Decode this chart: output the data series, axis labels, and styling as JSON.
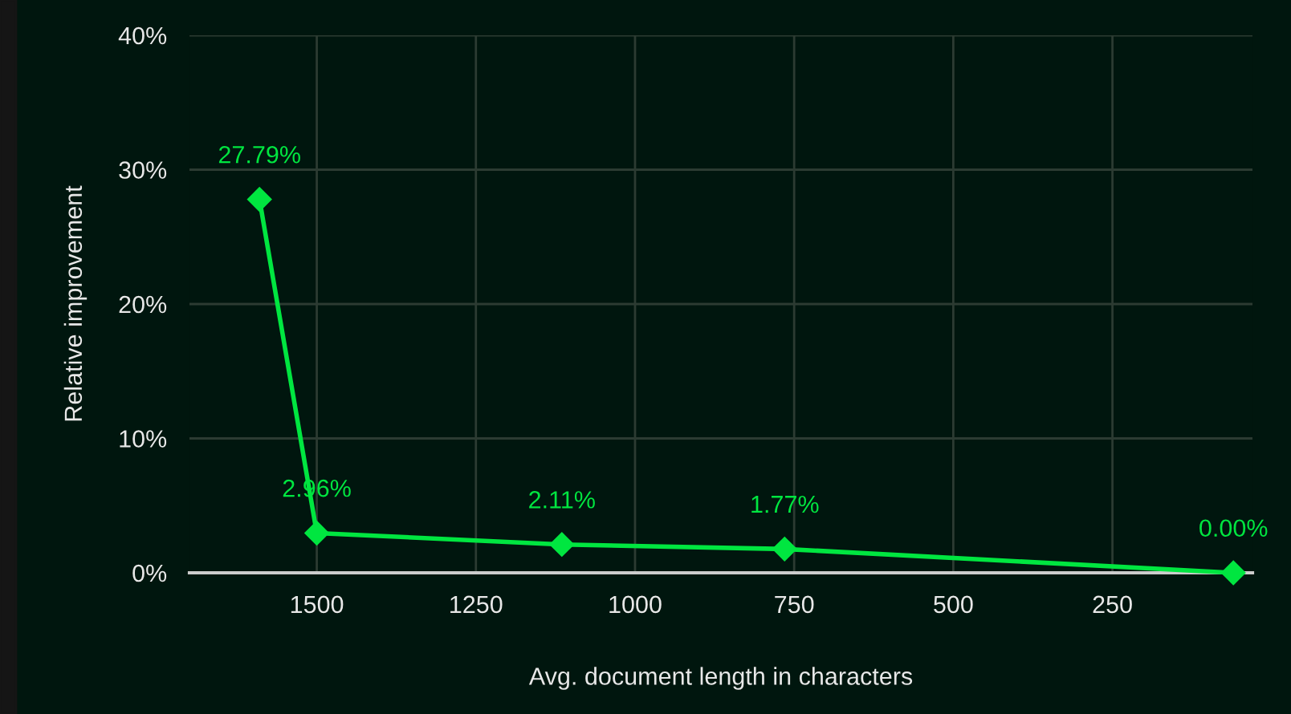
{
  "chart_data": {
    "type": "line",
    "xlabel": "Avg. document length in characters",
    "ylabel": "Relative improvement",
    "x": [
      1590,
      1500,
      1115,
      765,
      60
    ],
    "series": [
      {
        "color": "#00e640",
        "values": [
          27.79,
          2.96,
          2.11,
          1.77,
          0.0
        ],
        "value_labels": [
          "27.79%",
          "2.96%",
          "2.11%",
          "1.77%",
          "0.00%"
        ]
      }
    ],
    "xlim": [
      1700,
      30
    ],
    "xticks": [
      1500,
      1250,
      1000,
      750,
      500,
      250
    ],
    "ylim": [
      0,
      40
    ],
    "yticks": [
      {
        "value": 0,
        "label": "0%"
      },
      {
        "value": 10,
        "label": "10%"
      },
      {
        "value": 20,
        "label": "20%"
      },
      {
        "value": 30,
        "label": "30%"
      },
      {
        "value": 40,
        "label": "40%"
      }
    ],
    "grid": true,
    "marker": "diamond",
    "line_style": "solid"
  }
}
